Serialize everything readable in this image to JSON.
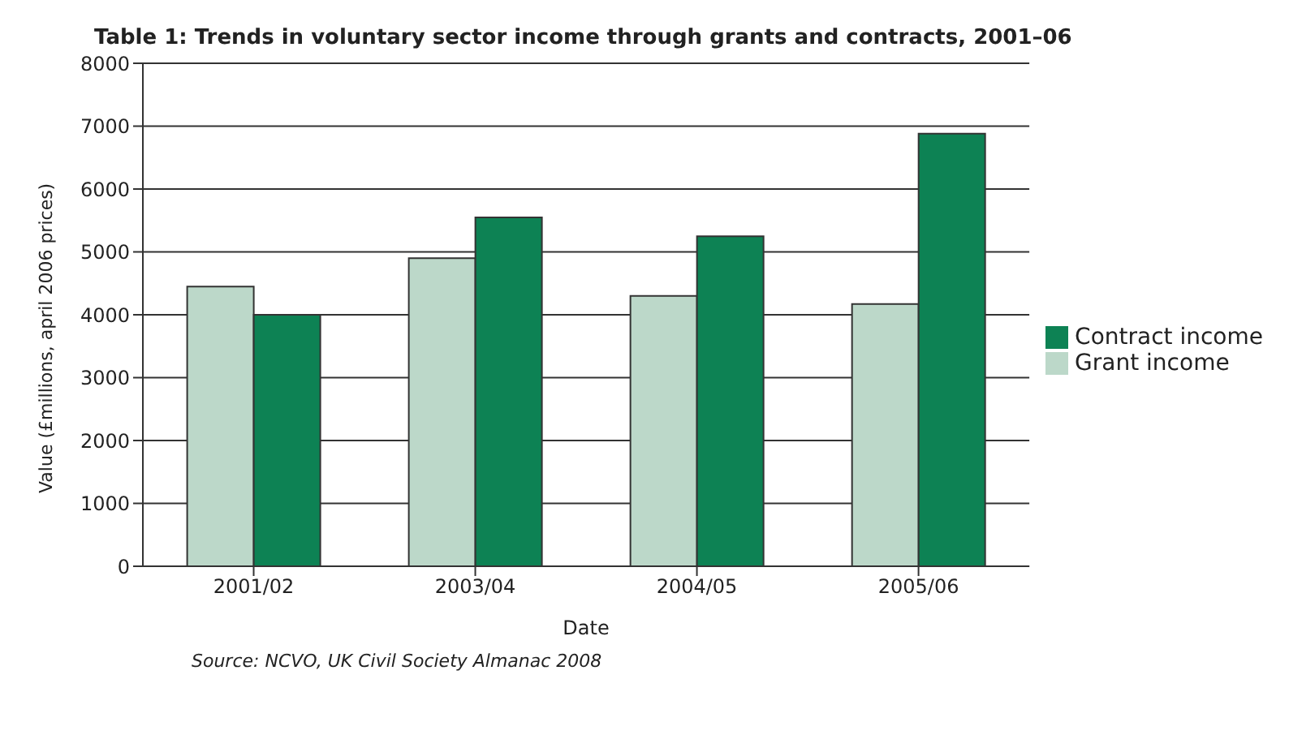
{
  "chart_data": {
    "type": "bar",
    "title": "Table 1: Trends in voluntary sector income through grants and contracts, 2001–06",
    "categories": [
      "2001/02",
      "2003/04",
      "2004/05",
      "2005/06"
    ],
    "series": [
      {
        "name": "Grant income",
        "color": "#bcd8c9",
        "values": [
          4450,
          4900,
          4300,
          4170
        ]
      },
      {
        "name": "Contract income",
        "color": "#0d8254",
        "values": [
          4000,
          5550,
          5250,
          6880
        ]
      }
    ],
    "xlabel": "Date",
    "ylabel": "Value (£millions, april 2006 prices)",
    "ylim": [
      0,
      8000
    ],
    "yticks": [
      0,
      1000,
      2000,
      3000,
      4000,
      5000,
      6000,
      7000,
      8000
    ],
    "grid": "y",
    "legend": "right",
    "annotations": [
      "Source: NCVO, UK Civil Society Almanac 2008"
    ]
  }
}
